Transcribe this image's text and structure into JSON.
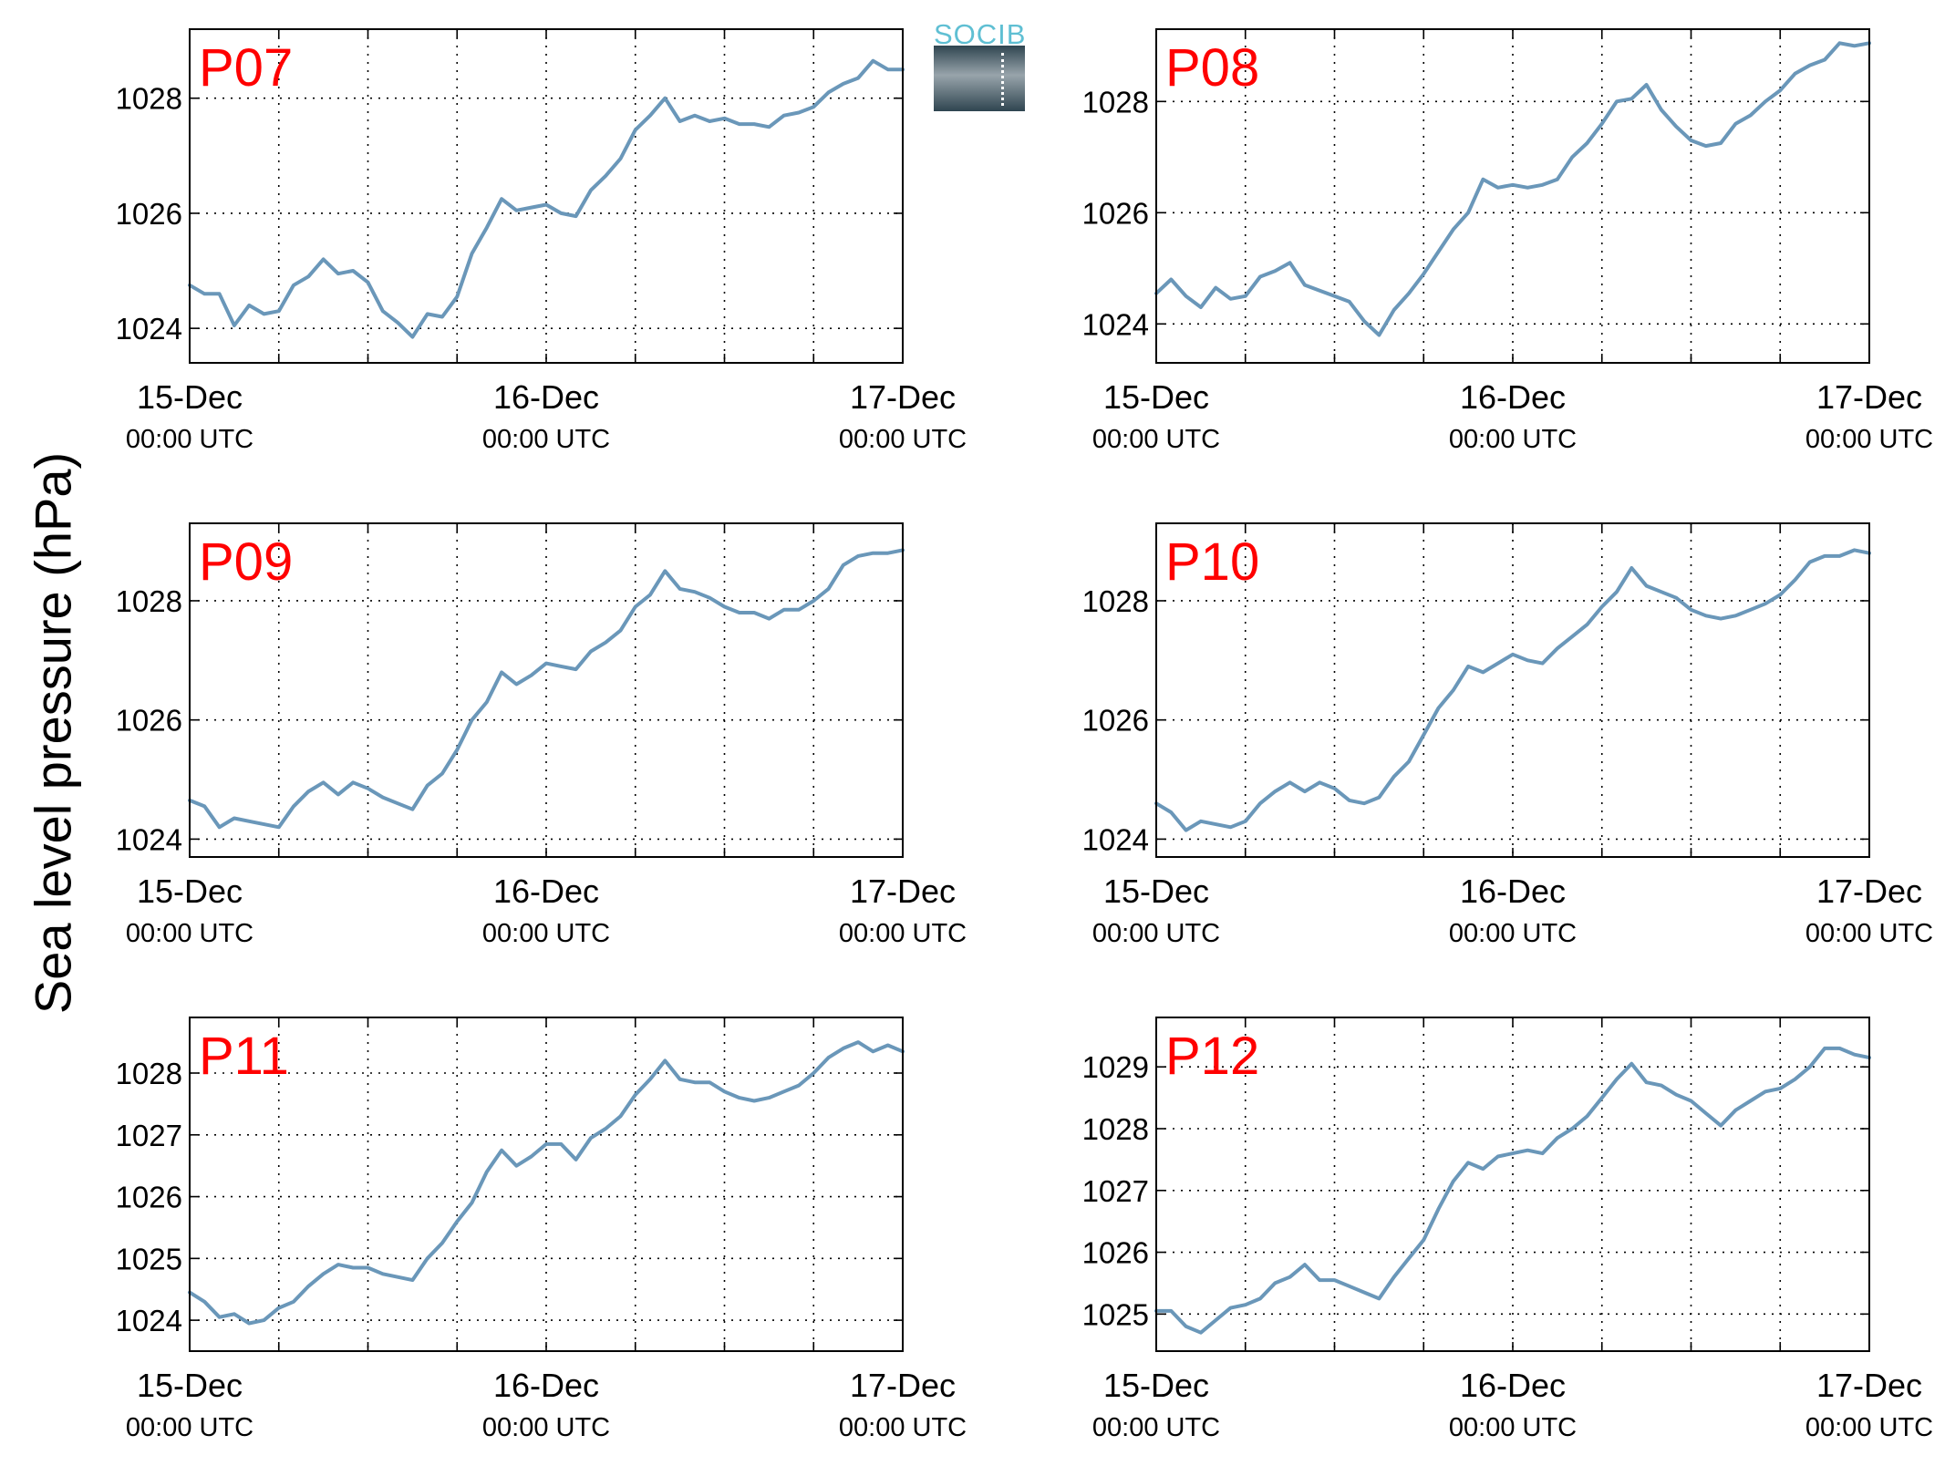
{
  "figure": {
    "ylabel": "Sea level pressure (hPa)",
    "logo_text": "SOCIB"
  },
  "colors": {
    "line": "#6a97b9",
    "panel_label": "#ff0000",
    "grid": "#000000"
  },
  "chart_data": [
    {
      "type": "line",
      "title": "P07",
      "x_ticks": [
        "15-Dec",
        "16-Dec",
        "17-Dec"
      ],
      "x_tick_sublabel": "00:00 UTC",
      "xlim": [
        0,
        48
      ],
      "ylim": [
        1023.4,
        1029.2
      ],
      "yticks": [
        1024,
        1026,
        1028
      ],
      "grid": true,
      "x": [
        0,
        1,
        2,
        3,
        4,
        5,
        6,
        7,
        8,
        9,
        10,
        11,
        12,
        13,
        14,
        15,
        16,
        17,
        18,
        19,
        20,
        21,
        22,
        23,
        24,
        25,
        26,
        27,
        28,
        29,
        30,
        31,
        32,
        33,
        34,
        35,
        36,
        37,
        38,
        39,
        40,
        41,
        42,
        43,
        44,
        45,
        46,
        47,
        48
      ],
      "y": [
        1024.75,
        1024.6,
        1024.6,
        1024.05,
        1024.4,
        1024.25,
        1024.3,
        1024.75,
        1024.9,
        1025.2,
        1024.95,
        1025.0,
        1024.8,
        1024.3,
        1024.1,
        1023.85,
        1024.25,
        1024.2,
        1024.55,
        1025.3,
        1025.75,
        1026.25,
        1026.05,
        1026.1,
        1026.15,
        1026.0,
        1025.95,
        1026.4,
        1026.65,
        1026.95,
        1027.45,
        1027.7,
        1028.0,
        1027.6,
        1027.7,
        1027.6,
        1027.65,
        1027.55,
        1027.55,
        1027.5,
        1027.7,
        1027.75,
        1027.85,
        1028.1,
        1028.25,
        1028.35,
        1028.65,
        1028.5,
        1028.5
      ]
    },
    {
      "type": "line",
      "title": "P08",
      "x_ticks": [
        "15-Dec",
        "16-Dec",
        "17-Dec"
      ],
      "x_tick_sublabel": "00:00 UTC",
      "xlim": [
        0,
        48
      ],
      "ylim": [
        1023.3,
        1029.3
      ],
      "yticks": [
        1024,
        1026,
        1028
      ],
      "grid": true,
      "x": [
        0,
        1,
        2,
        3,
        4,
        5,
        6,
        7,
        8,
        9,
        10,
        11,
        12,
        13,
        14,
        15,
        16,
        17,
        18,
        19,
        20,
        21,
        22,
        23,
        24,
        25,
        26,
        27,
        28,
        29,
        30,
        31,
        32,
        33,
        34,
        35,
        36,
        37,
        38,
        39,
        40,
        41,
        42,
        43,
        44,
        45,
        46,
        47,
        48
      ],
      "y": [
        1024.55,
        1024.8,
        1024.5,
        1024.3,
        1024.65,
        1024.45,
        1024.5,
        1024.85,
        1024.95,
        1025.1,
        1024.7,
        1024.6,
        1024.5,
        1024.4,
        1024.05,
        1023.8,
        1024.25,
        1024.55,
        1024.9,
        1025.3,
        1025.7,
        1026.0,
        1026.6,
        1026.45,
        1026.5,
        1026.45,
        1026.5,
        1026.6,
        1027.0,
        1027.25,
        1027.6,
        1028.0,
        1028.05,
        1028.3,
        1027.85,
        1027.55,
        1027.3,
        1027.2,
        1027.25,
        1027.6,
        1027.75,
        1028.0,
        1028.2,
        1028.5,
        1028.65,
        1028.75,
        1029.05,
        1029.0,
        1029.05
      ]
    },
    {
      "type": "line",
      "title": "P09",
      "x_ticks": [
        "15-Dec",
        "16-Dec",
        "17-Dec"
      ],
      "x_tick_sublabel": "00:00 UTC",
      "xlim": [
        0,
        48
      ],
      "ylim": [
        1023.7,
        1029.3
      ],
      "yticks": [
        1024,
        1026,
        1028
      ],
      "grid": true,
      "x": [
        0,
        1,
        2,
        3,
        4,
        5,
        6,
        7,
        8,
        9,
        10,
        11,
        12,
        13,
        14,
        15,
        16,
        17,
        18,
        19,
        20,
        21,
        22,
        23,
        24,
        25,
        26,
        27,
        28,
        29,
        30,
        31,
        32,
        33,
        34,
        35,
        36,
        37,
        38,
        39,
        40,
        41,
        42,
        43,
        44,
        45,
        46,
        47,
        48
      ],
      "y": [
        1024.65,
        1024.55,
        1024.2,
        1024.35,
        1024.3,
        1024.25,
        1024.2,
        1024.55,
        1024.8,
        1024.95,
        1024.75,
        1024.95,
        1024.85,
        1024.7,
        1024.6,
        1024.5,
        1024.9,
        1025.1,
        1025.5,
        1026.0,
        1026.3,
        1026.8,
        1026.6,
        1026.75,
        1026.95,
        1026.9,
        1026.85,
        1027.15,
        1027.3,
        1027.5,
        1027.9,
        1028.1,
        1028.5,
        1028.2,
        1028.15,
        1028.05,
        1027.9,
        1027.8,
        1027.8,
        1027.7,
        1027.85,
        1027.85,
        1028.0,
        1028.2,
        1028.6,
        1028.75,
        1028.8,
        1028.8,
        1028.85
      ]
    },
    {
      "type": "line",
      "title": "P10",
      "x_ticks": [
        "15-Dec",
        "16-Dec",
        "17-Dec"
      ],
      "x_tick_sublabel": "00:00 UTC",
      "xlim": [
        0,
        48
      ],
      "ylim": [
        1023.7,
        1029.3
      ],
      "yticks": [
        1024,
        1026,
        1028
      ],
      "grid": true,
      "x": [
        0,
        1,
        2,
        3,
        4,
        5,
        6,
        7,
        8,
        9,
        10,
        11,
        12,
        13,
        14,
        15,
        16,
        17,
        18,
        19,
        20,
        21,
        22,
        23,
        24,
        25,
        26,
        27,
        28,
        29,
        30,
        31,
        32,
        33,
        34,
        35,
        36,
        37,
        38,
        39,
        40,
        41,
        42,
        43,
        44,
        45,
        46,
        47,
        48
      ],
      "y": [
        1024.6,
        1024.45,
        1024.15,
        1024.3,
        1024.25,
        1024.2,
        1024.3,
        1024.6,
        1024.8,
        1024.95,
        1024.8,
        1024.95,
        1024.85,
        1024.65,
        1024.6,
        1024.7,
        1025.05,
        1025.3,
        1025.75,
        1026.2,
        1026.5,
        1026.9,
        1026.8,
        1026.95,
        1027.1,
        1027.0,
        1026.95,
        1027.2,
        1027.4,
        1027.6,
        1027.9,
        1028.15,
        1028.55,
        1028.25,
        1028.15,
        1028.05,
        1027.85,
        1027.75,
        1027.7,
        1027.75,
        1027.85,
        1027.95,
        1028.1,
        1028.35,
        1028.65,
        1028.75,
        1028.75,
        1028.85,
        1028.8
      ]
    },
    {
      "type": "line",
      "title": "P11",
      "x_ticks": [
        "15-Dec",
        "16-Dec",
        "17-Dec"
      ],
      "x_tick_sublabel": "00:00 UTC",
      "xlim": [
        0,
        48
      ],
      "ylim": [
        1023.5,
        1028.9
      ],
      "yticks": [
        1024,
        1025,
        1026,
        1027,
        1028
      ],
      "grid": true,
      "x": [
        0,
        1,
        2,
        3,
        4,
        5,
        6,
        7,
        8,
        9,
        10,
        11,
        12,
        13,
        14,
        15,
        16,
        17,
        18,
        19,
        20,
        21,
        22,
        23,
        24,
        25,
        26,
        27,
        28,
        29,
        30,
        31,
        32,
        33,
        34,
        35,
        36,
        37,
        38,
        39,
        40,
        41,
        42,
        43,
        44,
        45,
        46,
        47,
        48
      ],
      "y": [
        1024.45,
        1024.3,
        1024.05,
        1024.1,
        1023.95,
        1024.0,
        1024.2,
        1024.3,
        1024.55,
        1024.75,
        1024.9,
        1024.85,
        1024.85,
        1024.75,
        1024.7,
        1024.65,
        1025.0,
        1025.25,
        1025.6,
        1025.9,
        1026.4,
        1026.75,
        1026.5,
        1026.65,
        1026.85,
        1026.85,
        1026.6,
        1026.95,
        1027.1,
        1027.3,
        1027.65,
        1027.9,
        1028.2,
        1027.9,
        1027.85,
        1027.85,
        1027.7,
        1027.6,
        1027.55,
        1027.6,
        1027.7,
        1027.8,
        1028.0,
        1028.25,
        1028.4,
        1028.5,
        1028.35,
        1028.45,
        1028.35
      ]
    },
    {
      "type": "line",
      "title": "P12",
      "x_ticks": [
        "15-Dec",
        "16-Dec",
        "17-Dec"
      ],
      "x_tick_sublabel": "00:00 UTC",
      "xlim": [
        0,
        48
      ],
      "ylim": [
        1024.4,
        1029.8
      ],
      "yticks": [
        1025,
        1026,
        1027,
        1028,
        1029
      ],
      "grid": true,
      "x": [
        0,
        1,
        2,
        3,
        4,
        5,
        6,
        7,
        8,
        9,
        10,
        11,
        12,
        13,
        14,
        15,
        16,
        17,
        18,
        19,
        20,
        21,
        22,
        23,
        24,
        25,
        26,
        27,
        28,
        29,
        30,
        31,
        32,
        33,
        34,
        35,
        36,
        37,
        38,
        39,
        40,
        41,
        42,
        43,
        44,
        45,
        46,
        47,
        48
      ],
      "y": [
        1025.05,
        1025.05,
        1024.8,
        1024.7,
        1024.9,
        1025.1,
        1025.15,
        1025.25,
        1025.5,
        1025.6,
        1025.8,
        1025.55,
        1025.55,
        1025.45,
        1025.35,
        1025.25,
        1025.6,
        1025.9,
        1026.2,
        1026.7,
        1027.15,
        1027.45,
        1027.35,
        1027.55,
        1027.6,
        1027.65,
        1027.6,
        1027.85,
        1028.0,
        1028.2,
        1028.5,
        1028.8,
        1029.05,
        1028.75,
        1028.7,
        1028.55,
        1028.45,
        1028.25,
        1028.05,
        1028.3,
        1028.45,
        1028.6,
        1028.65,
        1028.8,
        1029.0,
        1029.3,
        1029.3,
        1029.2,
        1029.15
      ]
    }
  ]
}
